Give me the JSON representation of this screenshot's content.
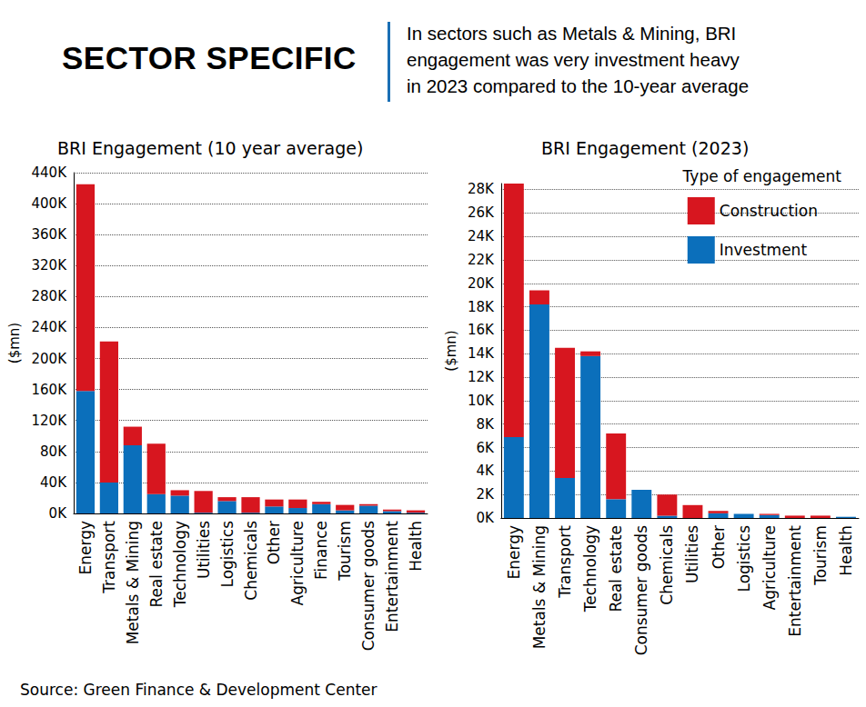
{
  "header": {
    "title": "SECTOR SPECIFIC",
    "lines": [
      "In sectors such as Metals & Mining, BRI",
      "engagement was very investment heavy",
      "in 2023 compared to the 10-year average"
    ]
  },
  "source": "Source: Green Finance & Development Center",
  "chart_data": [
    {
      "type": "bar",
      "title": "BRI Engagement (10 year average)",
      "y_label": "($mn)",
      "stacked": true,
      "grid": true,
      "categories": [
        "Energy",
        "Transport",
        "Metals & Mining",
        "Real estate",
        "Technology",
        "Utilities",
        "Logistics",
        "Chemicals",
        "Other",
        "Agriculture",
        "Finance",
        "Tourism",
        "Consumer goods",
        "Entertainment",
        "Health"
      ],
      "series": [
        {
          "name": "Construction",
          "color": "#d7161f",
          "values": [
            267000,
            182000,
            24000,
            65000,
            7000,
            28000,
            5000,
            20000,
            9000,
            11000,
            3000,
            7000,
            2000,
            2000,
            3000
          ]
        },
        {
          "name": "Investment",
          "color": "#0b6fbb",
          "values": [
            158000,
            40000,
            88000,
            25000,
            23000,
            1000,
            16000,
            1000,
            9000,
            7000,
            12000,
            4000,
            10000,
            3000,
            1000
          ]
        }
      ],
      "ylim": [
        0,
        440000
      ],
      "yticks": [
        {
          "value": 0,
          "label": "0K"
        },
        {
          "value": 40000,
          "label": "40K"
        },
        {
          "value": 80000,
          "label": "80K"
        },
        {
          "value": 120000,
          "label": "120K"
        },
        {
          "value": 160000,
          "label": "160K"
        },
        {
          "value": 200000,
          "label": "200K"
        },
        {
          "value": 240000,
          "label": "240K"
        },
        {
          "value": 280000,
          "label": "280K"
        },
        {
          "value": 320000,
          "label": "320K"
        },
        {
          "value": 360000,
          "label": "360K"
        },
        {
          "value": 400000,
          "label": "400K"
        },
        {
          "value": 440000,
          "label": "440K"
        }
      ]
    },
    {
      "type": "bar",
      "title": "BRI Engagement (2023)",
      "y_label": "($mn)",
      "stacked": true,
      "grid": true,
      "legend": "top-right",
      "legend_title": "Type of engagement",
      "categories": [
        "Energy",
        "Metals & Mining",
        "Transport",
        "Technology",
        "Real estate",
        "Consumer goods",
        "Chemicals",
        "Utilities",
        "Other",
        "Logistics",
        "Agriculture",
        "Entertainment",
        "Tourism",
        "Health"
      ],
      "series": [
        {
          "name": "Construction",
          "color": "#d7161f",
          "values": [
            21600,
            1200,
            11100,
            400,
            5600,
            0,
            1800,
            1100,
            200,
            0,
            100,
            200,
            200,
            0
          ]
        },
        {
          "name": "Investment",
          "color": "#0b6fbb",
          "values": [
            6900,
            18200,
            3400,
            13800,
            1600,
            2400,
            200,
            0,
            400,
            350,
            250,
            0,
            0,
            100
          ]
        }
      ],
      "ylim": [
        0,
        28500
      ],
      "yticks": [
        {
          "value": 0,
          "label": "0K"
        },
        {
          "value": 2000,
          "label": "2K"
        },
        {
          "value": 4000,
          "label": "4K"
        },
        {
          "value": 6000,
          "label": "6K"
        },
        {
          "value": 8000,
          "label": "8K"
        },
        {
          "value": 10000,
          "label": "10K"
        },
        {
          "value": 12000,
          "label": "12K"
        },
        {
          "value": 14000,
          "label": "14K"
        },
        {
          "value": 16000,
          "label": "16K"
        },
        {
          "value": 18000,
          "label": "18K"
        },
        {
          "value": 20000,
          "label": "20K"
        },
        {
          "value": 22000,
          "label": "22K"
        },
        {
          "value": 24000,
          "label": "24K"
        },
        {
          "value": 26000,
          "label": "26K"
        },
        {
          "value": 28000,
          "label": "28K"
        }
      ]
    }
  ]
}
